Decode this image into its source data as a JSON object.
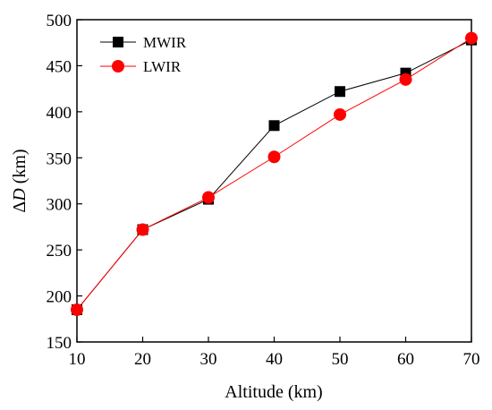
{
  "chart_data": {
    "type": "line",
    "xlabel": "Altitude (km)",
    "ylabel_prefix": "Δ",
    "ylabel_var": "D",
    "ylabel_suffix": " (km)",
    "xlim": [
      10,
      70
    ],
    "ylim": [
      150,
      500
    ],
    "xticks": [
      10,
      20,
      30,
      40,
      50,
      60,
      70
    ],
    "yticks": [
      150,
      200,
      250,
      300,
      350,
      400,
      450,
      500
    ],
    "grid": false,
    "legend_position": "top-left",
    "series": [
      {
        "name": "MWIR",
        "marker": "square",
        "color": "#000000",
        "x": [
          10,
          20,
          30,
          40,
          50,
          60,
          70
        ],
        "y": [
          185,
          272,
          305,
          385,
          422,
          442,
          478
        ]
      },
      {
        "name": "LWIR",
        "marker": "circle",
        "color": "#ff0000",
        "x": [
          10,
          20,
          30,
          40,
          50,
          60,
          70
        ],
        "y": [
          185,
          272,
          307,
          351,
          397,
          435,
          480
        ]
      }
    ]
  }
}
